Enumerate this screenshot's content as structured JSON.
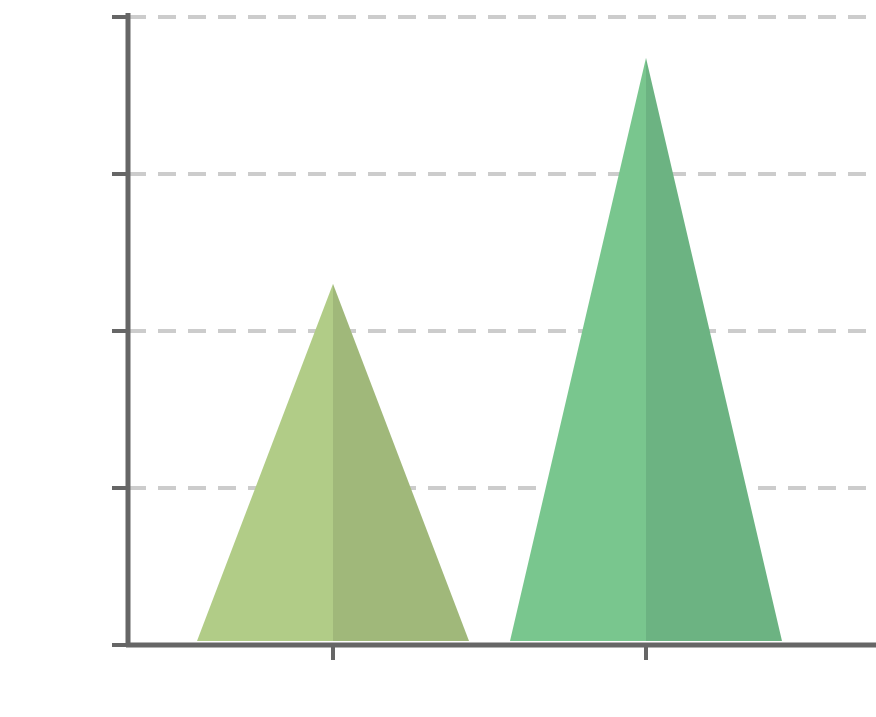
{
  "chart_data": {
    "type": "pyramid",
    "categories": [
      null,
      null
    ],
    "values": [
      2.3,
      3.74
    ],
    "colors": [
      [
        "#b1cc87",
        "#a0b87a"
      ],
      [
        "#79c68e",
        "#6cb382"
      ]
    ],
    "ylim": [
      0,
      4
    ],
    "yticks": [
      0,
      1,
      2,
      3,
      4
    ],
    "grid": true
  }
}
